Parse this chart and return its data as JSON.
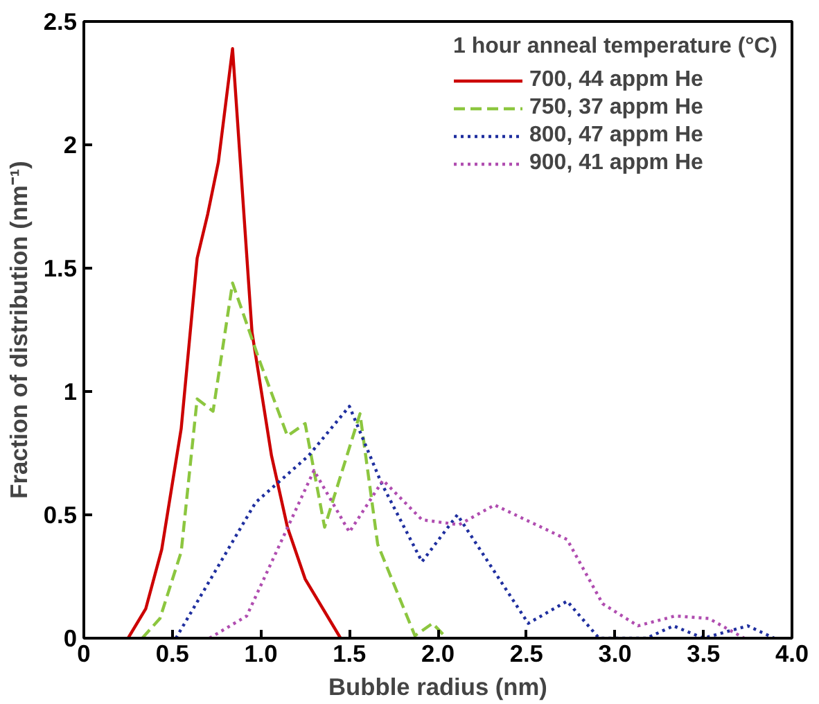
{
  "chart_data": {
    "type": "line",
    "xlabel": "Bubble radius (nm)",
    "ylabel": "Fraction of distribution (nm⁻¹)",
    "legend_title": "1 hour anneal temperature (°C)",
    "xlim": [
      0,
      4.0
    ],
    "ylim": [
      0,
      2.5
    ],
    "xticks": [
      0,
      0.5,
      {
        "value": 1,
        "label": "1.0"
      },
      1.5,
      {
        "value": 2,
        "label": "2.0"
      },
      2.5,
      {
        "value": 3,
        "label": "3.0"
      },
      3.5,
      {
        "value": 4,
        "label": "4.0"
      }
    ],
    "yticks": [
      0,
      0.5,
      1,
      1.5,
      2,
      2.5
    ],
    "grid": false,
    "legend": "top right",
    "marker": "none",
    "series": [
      {
        "name": "700, 44 appm He",
        "color": "#cc0000",
        "line_style": "solid",
        "x": [
          0.25,
          0.35,
          0.44,
          0.55,
          0.64,
          0.7,
          0.76,
          0.84,
          0.95,
          1.06,
          1.15,
          1.25,
          1.45
        ],
        "values": [
          0,
          0.12,
          0.36,
          0.85,
          1.54,
          1.72,
          1.93,
          2.39,
          1.24,
          0.74,
          0.45,
          0.24,
          0
        ]
      },
      {
        "name": "750, 37 appm He",
        "color": "#8cc63f",
        "line_style": "dashed",
        "x": [
          0.33,
          0.43,
          0.55,
          0.64,
          0.73,
          0.84,
          0.99,
          1.15,
          1.25,
          1.36,
          1.56,
          1.66,
          1.87,
          1.97,
          2.05
        ],
        "values": [
          0,
          0.08,
          0.35,
          0.97,
          0.92,
          1.44,
          1.13,
          0.82,
          0.87,
          0.45,
          0.91,
          0.38,
          0.01,
          0.06,
          0
        ]
      },
      {
        "name": "800, 47 appm He",
        "color": "#1f2f9f",
        "line_style": "dotted",
        "x": [
          0.52,
          0.97,
          1.27,
          1.5,
          1.68,
          1.91,
          2.11,
          2.51,
          2.73,
          2.91,
          3.18,
          3.33,
          3.5,
          3.75,
          3.9
        ],
        "values": [
          0,
          0.55,
          0.74,
          0.94,
          0.63,
          0.31,
          0.5,
          0.06,
          0.15,
          0,
          0,
          0.05,
          0,
          0.05,
          0
        ]
      },
      {
        "name": "900, 41 appm He",
        "color": "#b04db0",
        "line_style": "dotted",
        "x": [
          0.71,
          0.92,
          1.3,
          1.5,
          1.69,
          1.91,
          2.12,
          2.32,
          2.73,
          2.93,
          3.13,
          3.34,
          3.53,
          3.73
        ],
        "values": [
          0,
          0.09,
          0.68,
          0.43,
          0.64,
          0.48,
          0.46,
          0.54,
          0.4,
          0.14,
          0.05,
          0.09,
          0.08,
          0
        ]
      }
    ]
  }
}
